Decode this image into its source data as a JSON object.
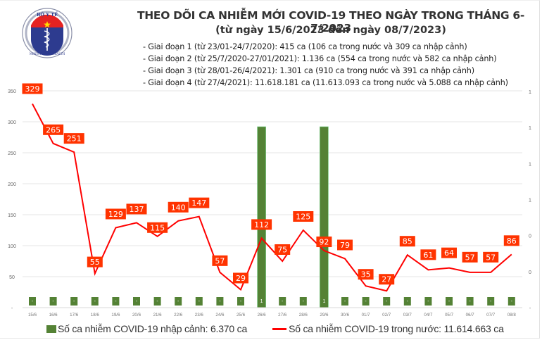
{
  "header": {
    "logo": {
      "top_text": "BỘ Y TẾ",
      "bottom_text": "MINISTRY OF HEALTH"
    },
    "title": "THEO DÕI CA NHIỄM MỚI COVID-19 THEO NGÀY TRONG THÁNG 6-7/2023",
    "subtitle": "(từ ngày 15/6/2023 đến ngày 08/7/2023)",
    "phases": [
      "- Giai đoạn 1 (từ 23/01-24/7/2020): 415 ca (106 ca trong nước và 309 ca nhập cảnh)",
      "- Giai đoạn 2 (từ 25/7/2020-27/01/2021): 1.136 ca (554 ca trong nước và 582 ca nhập cảnh)",
      "- Giai đoạn 3 (từ 28/01-26/4/2021): 1.301 ca (910 ca trong nước và 391 ca nhập cảnh)",
      "- Giai đoạn 4 (từ 27/4/2021): 11.618.181 ca (11.613.093 ca trong nước và 5.088 ca nhập cảnh)"
    ]
  },
  "legend": {
    "bar_label": "Số ca nhiễm COVID-19 nhập cảnh: 6.370 ca",
    "line_label": "Số ca nhiễm COVID-19 trong nước: 11.614.663 ca"
  },
  "colors": {
    "bar": "#548235",
    "line": "#ff0000",
    "label_bg": "#ff3300",
    "grid": "#e6e6e6"
  },
  "chart_data": {
    "type": "bar+line",
    "title": "THEO DÕI CA NHIỄM MỚI COVID-19 THEO NGÀY TRONG THÁNG 6-7/2023",
    "subtitle": "(từ ngày 15/6/2023 đến ngày 08/7/2023)",
    "categories": [
      "15/6",
      "16/6",
      "17/6",
      "18/6",
      "19/6",
      "20/6",
      "21/6",
      "22/6",
      "23/6",
      "24/6",
      "25/6",
      "26/6",
      "27/6",
      "28/6",
      "29/6",
      "30/6",
      "01/7",
      "02/7",
      "03/7",
      "04/7",
      "05/7",
      "06/7",
      "07/7",
      "08/8"
    ],
    "series": [
      {
        "name": "Số ca nhiễm COVID-19 nhập cảnh: 6.370 ca",
        "type": "bar",
        "axis": "right",
        "values": [
          0,
          0,
          0,
          0,
          0,
          0,
          0,
          0,
          0,
          0,
          0,
          1,
          0,
          0,
          1,
          0,
          0,
          0,
          0,
          0,
          0,
          0,
          0,
          0
        ],
        "labels": [
          "-",
          "-",
          "-",
          "-",
          "-",
          "-",
          "-",
          "-",
          "-",
          "-",
          "-",
          "1",
          "-",
          "-",
          "1",
          "-",
          "-",
          "-",
          "-",
          "-",
          "-",
          "-",
          "-",
          "-"
        ]
      },
      {
        "name": "Số ca nhiễm COVID-19 trong nước: 11.614.663 ca",
        "type": "line",
        "axis": "left",
        "values": [
          329,
          265,
          251,
          55,
          129,
          137,
          115,
          140,
          147,
          57,
          29,
          112,
          75,
          125,
          92,
          79,
          35,
          27,
          85,
          61,
          64,
          57,
          57,
          86
        ]
      }
    ],
    "left_axis": {
      "ticks": [
        "-",
        "50",
        "100",
        "150",
        "200",
        "250",
        "300",
        "350"
      ],
      "ylim": [
        0,
        350
      ]
    },
    "right_axis": {
      "ticks": [
        "-",
        "0",
        "0",
        "1",
        "1",
        "1",
        "1"
      ]
    },
    "grid": true,
    "legend_position": "bottom"
  }
}
